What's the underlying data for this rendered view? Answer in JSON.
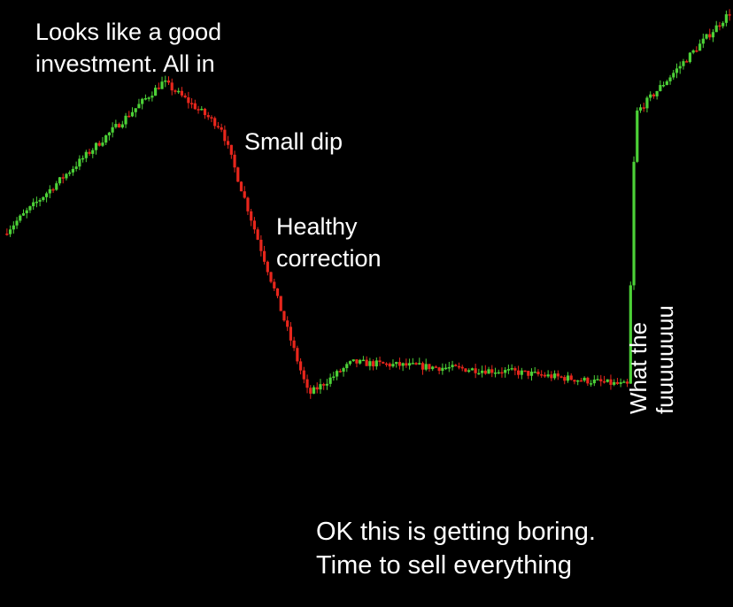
{
  "annotations": {
    "buy": "Looks like a good\ninvestment. All in",
    "dip": "Small dip",
    "correction": "Healthy\ncorrection",
    "boring": "OK this is getting boring.\nTime to sell everything",
    "spike": "What the fuuuuuuuu"
  },
  "colors": {
    "background": "#000000",
    "up_candle": "#4cd137",
    "down_candle": "#e8261c",
    "text": "#ffffff"
  },
  "chart_data": {
    "type": "candlestick",
    "title": "",
    "xlabel": "",
    "ylabel": "",
    "grid": false,
    "axes_visible": false,
    "ylim": [
      0,
      100
    ],
    "trend_keypoints": [
      {
        "x": 0,
        "y": 55,
        "phase": "rise"
      },
      {
        "x": 22,
        "y": 88,
        "phase": "peak"
      },
      {
        "x": 30,
        "y": 78,
        "phase": "small dip"
      },
      {
        "x": 42,
        "y": 20,
        "phase": "healthy correction"
      },
      {
        "x": 48,
        "y": 27,
        "phase": "sideways"
      },
      {
        "x": 70,
        "y": 25,
        "phase": "sideways"
      },
      {
        "x": 86,
        "y": 22,
        "phase": "sideways"
      },
      {
        "x": 87,
        "y": 81,
        "phase": "spike"
      },
      {
        "x": 100,
        "y": 103,
        "phase": "rise"
      }
    ]
  }
}
